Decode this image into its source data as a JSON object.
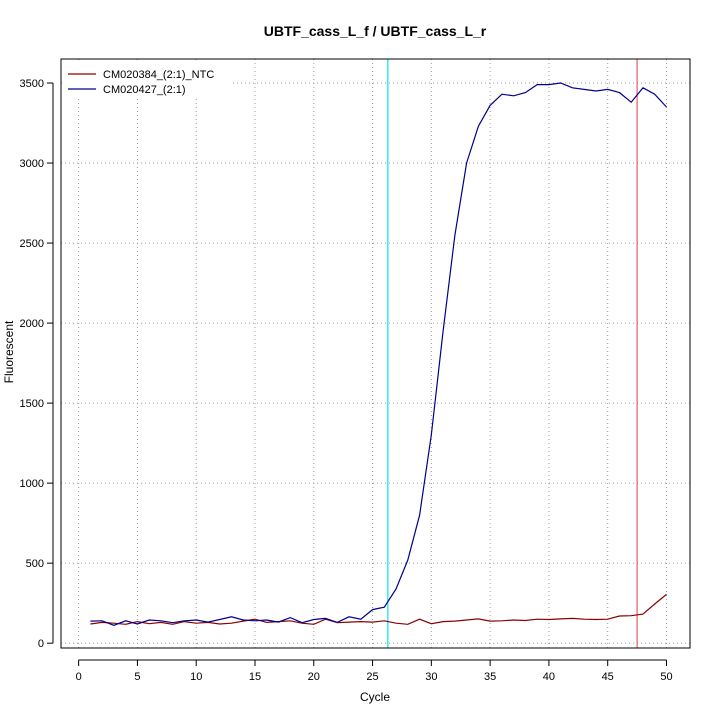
{
  "chart_data": {
    "type": "line",
    "title": "UBTF_cass_L_f / UBTF_cass_L_r",
    "xlabel": "Cycle",
    "ylabel": "Fluorescent",
    "xlim": [
      -1.5,
      52
    ],
    "ylim": [
      -30,
      3650
    ],
    "xticks": [
      0,
      5,
      10,
      15,
      20,
      25,
      30,
      35,
      40,
      45,
      50
    ],
    "yticks": [
      0,
      500,
      1000,
      1500,
      2000,
      2500,
      3000,
      3500
    ],
    "grid": true,
    "legend_position": "top-left",
    "x": [
      1,
      2,
      3,
      4,
      5,
      6,
      7,
      8,
      9,
      10,
      11,
      12,
      13,
      14,
      15,
      16,
      17,
      18,
      19,
      20,
      21,
      22,
      23,
      24,
      25,
      26,
      27,
      28,
      29,
      30,
      31,
      32,
      33,
      34,
      35,
      36,
      37,
      38,
      39,
      40,
      41,
      42,
      43,
      44,
      45,
      46,
      47,
      48,
      49,
      50
    ],
    "series": [
      {
        "name": "CM020384_(2:1)_NTC",
        "color": "#8b0000",
        "values": [
          120,
          130,
          125,
          118,
          135,
          122,
          130,
          118,
          135,
          125,
          130,
          120,
          125,
          138,
          150,
          130,
          135,
          140,
          125,
          118,
          150,
          128,
          132,
          135,
          132,
          140,
          125,
          118,
          150,
          122,
          135,
          138,
          145,
          152,
          138,
          140,
          145,
          142,
          150,
          148,
          152,
          155,
          150,
          148,
          150,
          170,
          172,
          182,
          245,
          305
        ]
      },
      {
        "name": "CM020427_(2:1)",
        "color": "#00008b",
        "values": [
          138,
          140,
          112,
          140,
          120,
          145,
          140,
          128,
          140,
          145,
          132,
          148,
          165,
          145,
          140,
          145,
          132,
          160,
          128,
          148,
          155,
          130,
          165,
          150,
          210,
          225,
          340,
          520,
          800,
          1300,
          1950,
          2550,
          3000,
          3230,
          3360,
          3430,
          3420,
          3440,
          3490,
          3490,
          3500,
          3470,
          3460,
          3450,
          3460,
          3440,
          3380,
          3470,
          3430,
          3350
        ]
      }
    ],
    "threshold_lines": [
      {
        "axis": "x",
        "value": 26.3,
        "color": "#00e5ee"
      },
      {
        "axis": "x",
        "value": 47.5,
        "color": "#e06060"
      }
    ]
  }
}
